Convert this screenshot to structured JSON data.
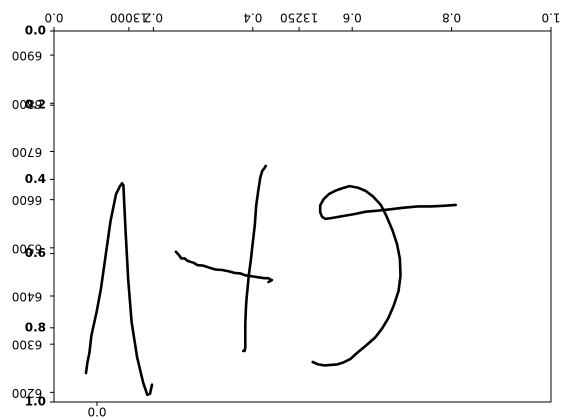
{
  "chart_data": {
    "type": "line",
    "title": "",
    "xlabel": "",
    "ylabel": "",
    "grid": false,
    "axes": {
      "y_left_ticks": [
        "6200",
        "6300",
        "6400",
        "6500",
        "6600",
        "6700",
        "6800",
        "6900"
      ],
      "y_left_range": [
        6950,
        6180
      ],
      "y_left_fraction_ticks": [
        "0.0",
        "0.2",
        "0.4",
        "0.6",
        "0.8",
        "1.0"
      ],
      "y_left_fraction_range": [
        0.0,
        1.0
      ],
      "x_top_ticks": [
        "13000",
        "13250"
      ],
      "x_top_range": [
        12890,
        13620
      ],
      "x_top_fraction_ticks": [
        "0.0",
        "0.2",
        "0.4",
        "0.6",
        "0.8",
        "1.0"
      ],
      "x_bottom_fraction_ticks": [
        "0.0"
      ],
      "colors": {
        "ink": "#000000",
        "frame": "#000000",
        "background": "#ffffff"
      }
    },
    "series": [
      {
        "x": [
          12937,
          12939,
          12942,
          12945,
          12953,
          12959,
          12966,
          12973,
          12981,
          12987,
          12990,
          12992,
          12993,
          12995,
          12999,
          13004,
          13012,
          13021,
          13027,
          13031,
          13034
        ],
        "y": [
          6240,
          6262,
          6282,
          6318,
          6370,
          6416,
          6485,
          6555,
          6611,
          6628,
          6634,
          6630,
          6598,
          6538,
          6434,
          6346,
          6273,
          6220,
          6195,
          6197,
          6216
        ]
      },
      {
        "x": [
          13168,
          13170,
          13171,
          13171,
          13171,
          13172,
          13173,
          13175,
          13176,
          13179,
          13182,
          13185,
          13187,
          13190,
          13193,
          13196,
          13199,
          13201
        ],
        "y": [
          6286,
          6286,
          6293,
          6325,
          6343,
          6378,
          6398,
          6425,
          6442,
          6474,
          6511,
          6547,
          6588,
          6618,
          6646,
          6660,
          6665,
          6670
        ]
      },
      {
        "x": [
          13069,
          13074,
          13077,
          13082,
          13086,
          13095,
          13101,
          13109,
          13118,
          13127,
          13137,
          13147,
          13155,
          13164,
          13171,
          13180,
          13189,
          13199,
          13205,
          13208,
          13210,
          13205
        ],
        "y": [
          6492,
          6484,
          6478,
          6478,
          6473,
          6469,
          6464,
          6463,
          6459,
          6455,
          6454,
          6451,
          6448,
          6447,
          6443,
          6441,
          6439,
          6437,
          6437,
          6434,
          6433,
          6429
        ]
      },
      {
        "x": [
          13270,
          13278,
          13287,
          13296,
          13306,
          13315,
          13325,
          13337,
          13349,
          13362,
          13372,
          13381,
          13389,
          13396,
          13399,
          13398,
          13394,
          13387,
          13378,
          13370,
          13359,
          13348,
          13336,
          13324,
          13314,
          13304,
          13294,
          13286,
          13281,
          13281,
          13284,
          13289,
          13299,
          13315,
          13331,
          13348,
          13365,
          13384,
          13402,
          13424,
          13443,
          13458,
          13470,
          13480
        ],
        "y": [
          6263,
          6258,
          6256,
          6257,
          6258,
          6262,
          6269,
          6284,
          6298,
          6314,
          6333,
          6354,
          6380,
          6410,
          6442,
          6477,
          6507,
          6537,
          6567,
          6589,
          6606,
          6618,
          6625,
          6628,
          6624,
          6619,
          6612,
          6601,
          6588,
          6574,
          6564,
          6560,
          6562,
          6566,
          6570,
          6575,
          6577,
          6580,
          6583,
          6586,
          6586,
          6587,
          6588,
          6589
        ]
      }
    ]
  }
}
